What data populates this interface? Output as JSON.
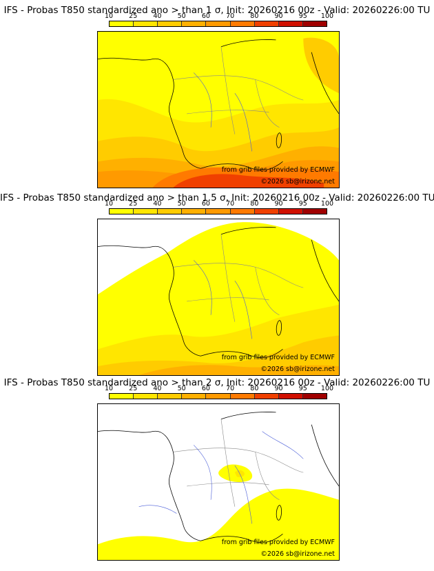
{
  "colorbar": {
    "ticks": [
      "10",
      "25",
      "40",
      "50",
      "60",
      "70",
      "80",
      "90",
      "95",
      "100"
    ],
    "colors": [
      "#ffff00",
      "#ffe600",
      "#ffcc00",
      "#ffb000",
      "#ff9a00",
      "#ff7a00",
      "#f04000",
      "#d01000",
      "#a00000",
      "#600000"
    ]
  },
  "panels": [
    {
      "title": "IFS - Probas T850  standardized ano > than 1 σ, Init: 20260216 00z - Valid: 20260226:00 TU",
      "source_credit": "from grib files provided by ECMWF",
      "copyright": "©2026 sb@irizone.net"
    },
    {
      "title": "IFS - Probas T850  standardized ano > than 1.5 σ, Init: 20260216 00z - Valid: 20260226:00 TU",
      "source_credit": "from grib files provided by ECMWF",
      "copyright": "©2026 sb@irizone.net"
    },
    {
      "title": "IFS - Probas T850  standardized ano > than 2 σ, Init: 20260216 00z - Valid: 20260226:00 TU",
      "source_credit": "from grib files provided by ECMWF",
      "copyright": "©2026 sb@irizone.net"
    }
  ]
}
